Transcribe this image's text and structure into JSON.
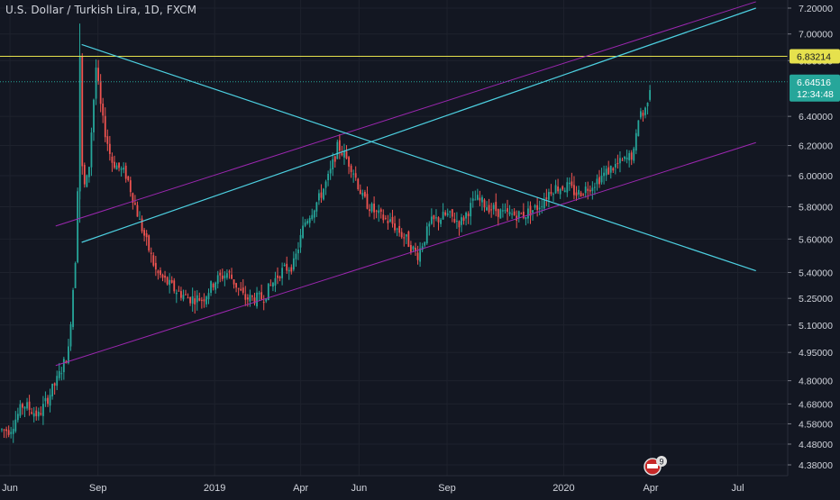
{
  "header": {
    "title": "U.S. Dollar / Turkish Lira, 1D, FXCM"
  },
  "colors": {
    "background": "#131722",
    "grid": "#1e222d",
    "up": "#26a69a",
    "down": "#ef5350",
    "trendline": "#4dd0e1",
    "channel": "#9c27b0",
    "horizontal": "#e6e14d"
  },
  "chart_data": {
    "type": "candlestick",
    "symbol": "USD/TRY",
    "interval": "1D",
    "x_ticks": [
      "Jun",
      "Sep",
      "2019",
      "Apr",
      "Jun",
      "Sep",
      "2020",
      "Apr",
      "Jul"
    ],
    "y_ticks": [
      "7.20000",
      "7.00000",
      "6.80000",
      "6.40000",
      "6.20000",
      "6.00000",
      "5.80000",
      "5.60000",
      "5.40000",
      "5.25000",
      "5.10000",
      "4.95000",
      "4.80000",
      "4.68000",
      "4.58000",
      "4.48000",
      "4.38000"
    ],
    "y_tick_values": [
      7.2,
      7.0,
      6.8,
      6.4,
      6.2,
      6.0,
      5.8,
      5.6,
      5.4,
      5.25,
      5.1,
      4.95,
      4.8,
      4.68,
      4.58,
      4.48,
      4.38
    ],
    "scale": "log",
    "last_price": {
      "label": "6.64516",
      "value": 6.64516,
      "countdown": "12:34:48"
    },
    "horizontal_level": {
      "label": "6.83214",
      "value": 6.83214
    },
    "price_path": [
      [
        "2018-06-01",
        4.55
      ],
      [
        "2018-06-15",
        4.68
      ],
      [
        "2018-07-01",
        4.62
      ],
      [
        "2018-07-20",
        4.8
      ],
      [
        "2018-08-01",
        4.95
      ],
      [
        "2018-08-10",
        5.6
      ],
      [
        "2018-08-13",
        6.9
      ],
      [
        "2018-08-16",
        5.9
      ],
      [
        "2018-08-22",
        6.0
      ],
      [
        "2018-08-30",
        6.75
      ],
      [
        "2018-09-05",
        6.4
      ],
      [
        "2018-09-15",
        6.1
      ],
      [
        "2018-10-01",
        6.0
      ],
      [
        "2018-10-15",
        5.7
      ],
      [
        "2018-11-01",
        5.4
      ],
      [
        "2018-11-20",
        5.3
      ],
      [
        "2018-12-05",
        5.25
      ],
      [
        "2018-12-20",
        5.25
      ],
      [
        "2019-01-01",
        5.35
      ],
      [
        "2019-01-15",
        5.4
      ],
      [
        "2019-02-01",
        5.25
      ],
      [
        "2019-02-20",
        5.25
      ],
      [
        "2019-03-10",
        5.4
      ],
      [
        "2019-03-25",
        5.45
      ],
      [
        "2019-04-05",
        5.7
      ],
      [
        "2019-04-20",
        5.85
      ],
      [
        "2019-05-01",
        6.0
      ],
      [
        "2019-05-10",
        6.2
      ],
      [
        "2019-05-25",
        6.05
      ],
      [
        "2019-06-05",
        5.85
      ],
      [
        "2019-06-20",
        5.75
      ],
      [
        "2019-07-05",
        5.7
      ],
      [
        "2019-07-20",
        5.6
      ],
      [
        "2019-08-01",
        5.5
      ],
      [
        "2019-08-15",
        5.7
      ],
      [
        "2019-09-01",
        5.75
      ],
      [
        "2019-09-15",
        5.7
      ],
      [
        "2019-10-01",
        5.85
      ],
      [
        "2019-10-15",
        5.8
      ],
      [
        "2019-11-01",
        5.75
      ],
      [
        "2019-11-20",
        5.75
      ],
      [
        "2019-12-05",
        5.8
      ],
      [
        "2019-12-20",
        5.92
      ],
      [
        "2020-01-05",
        5.93
      ],
      [
        "2020-01-15",
        5.88
      ],
      [
        "2020-02-01",
        5.95
      ],
      [
        "2020-02-20",
        6.05
      ],
      [
        "2020-03-05",
        6.1
      ],
      [
        "2020-03-15",
        6.15
      ],
      [
        "2020-03-20",
        6.45
      ],
      [
        "2020-03-25",
        6.4
      ],
      [
        "2020-04-01",
        6.64516
      ]
    ],
    "trendlines": [
      {
        "name": "",
        "kind": "descending",
        "from": [
          "2018-08-15",
          6.92
        ],
        "to": [
          "2020-07-20",
          5.41
        ]
      },
      {
        "name": "",
        "kind": "ascending",
        "from": [
          "2018-08-15",
          5.58
        ],
        "to": [
          "2020-07-20",
          7.2
        ]
      }
    ],
    "channel": [
      {
        "from": [
          "2018-08-01",
          5.68
        ],
        "to": [
          "2020-07-20",
          7.25
        ]
      },
      {
        "from": [
          "2018-08-01",
          4.88
        ],
        "to": [
          "2020-07-20",
          6.22
        ]
      }
    ],
    "badge": {
      "count": "9"
    },
    "grid": true
  }
}
